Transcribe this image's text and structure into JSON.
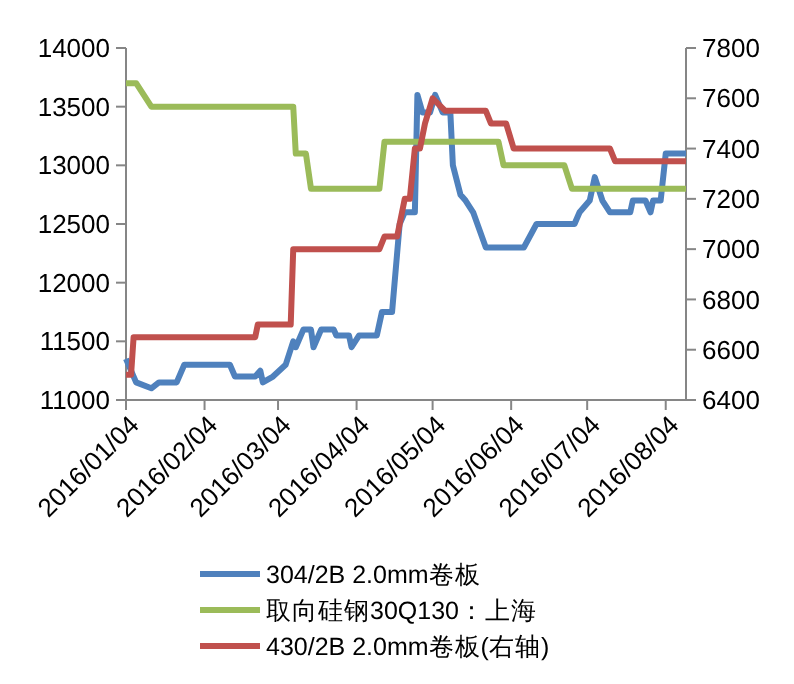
{
  "chart_data": {
    "type": "line",
    "xlim": [
      "2016-01-04",
      "2016-08-12"
    ],
    "xticks": [
      {
        "value": "2016-01-04",
        "label": "2016/01/04"
      },
      {
        "value": "2016-02-04",
        "label": "2016/02/04"
      },
      {
        "value": "2016-03-04",
        "label": "2016/03/04"
      },
      {
        "value": "2016-04-04",
        "label": "2016/04/04"
      },
      {
        "value": "2016-05-04",
        "label": "2016/05/04"
      },
      {
        "value": "2016-06-04",
        "label": "2016/06/04"
      },
      {
        "value": "2016-07-04",
        "label": "2016/07/04"
      },
      {
        "value": "2016-08-04",
        "label": "2016/08/04"
      }
    ],
    "ylim": [
      11000,
      14000
    ],
    "yticks": [
      11000,
      11500,
      12000,
      12500,
      13000,
      13500,
      14000
    ],
    "y2lim": [
      6400,
      7800
    ],
    "y2ticks": [
      6400,
      6600,
      6800,
      7000,
      7200,
      7400,
      7600,
      7800
    ],
    "grid": false,
    "legend": "bottom",
    "marker": "none",
    "line_style": "solid",
    "series": [
      {
        "name": "304/2B 2.0mm卷板",
        "color": "#4f81bd",
        "x": [
          "2016-01-04",
          "2016-01-08",
          "2016-01-14",
          "2016-01-17",
          "2016-01-24",
          "2016-01-27",
          "2016-02-14",
          "2016-02-16",
          "2016-02-24",
          "2016-02-26",
          "2016-02-27",
          "2016-03-02",
          "2016-03-07",
          "2016-03-10",
          "2016-03-11",
          "2016-03-14",
          "2016-03-17",
          "2016-03-18",
          "2016-03-21",
          "2016-03-26",
          "2016-03-27",
          "2016-04-01",
          "2016-04-02",
          "2016-04-05",
          "2016-04-12",
          "2016-04-14",
          "2016-04-18",
          "2016-04-21",
          "2016-04-23",
          "2016-04-27",
          "2016-04-28",
          "2016-04-30",
          "2016-05-03",
          "2016-05-05",
          "2016-05-08",
          "2016-05-11",
          "2016-05-12",
          "2016-05-15",
          "2016-05-17",
          "2016-05-20",
          "2016-05-25",
          "2016-06-09",
          "2016-06-14",
          "2016-06-29",
          "2016-07-01",
          "2016-07-05",
          "2016-07-07",
          "2016-07-10",
          "2016-07-13",
          "2016-07-21",
          "2016-07-22",
          "2016-07-27",
          "2016-07-29",
          "2016-07-30",
          "2016-08-02",
          "2016-08-03",
          "2016-08-04",
          "2016-08-12"
        ],
        "values": [
          11350,
          11150,
          11100,
          11150,
          11150,
          11300,
          11300,
          11200,
          11200,
          11250,
          11150,
          11200,
          11300,
          11500,
          11450,
          11600,
          11600,
          11450,
          11600,
          11600,
          11550,
          11550,
          11450,
          11550,
          11550,
          11750,
          11750,
          12500,
          12600,
          12600,
          13600,
          13450,
          13450,
          13600,
          13450,
          13450,
          13000,
          12750,
          12700,
          12600,
          12300,
          12300,
          12500,
          12500,
          12600,
          12700,
          12900,
          12700,
          12600,
          12600,
          12700,
          12700,
          12600,
          12700,
          12700,
          12900,
          13100,
          13100
        ]
      },
      {
        "name": "取向硅钢30Q130：上海",
        "color": "#9bbb59",
        "x": [
          "2016-01-04",
          "2016-01-08",
          "2016-01-11",
          "2016-01-14",
          "2016-03-10",
          "2016-03-11",
          "2016-03-15",
          "2016-03-17",
          "2016-04-13",
          "2016-04-15",
          "2016-05-30",
          "2016-06-01",
          "2016-06-25",
          "2016-06-28",
          "2016-08-12"
        ],
        "values": [
          13700,
          13700,
          13600,
          13500,
          13500,
          13100,
          13100,
          12800,
          12800,
          13200,
          13200,
          13000,
          13000,
          12800,
          12800
        ]
      },
      {
        "name": "430/2B 2.0mm卷板(右轴)",
        "color": "#c0504d",
        "axis": "y2",
        "x": [
          "2016-01-04",
          "2016-01-06",
          "2016-01-07",
          "2016-02-24",
          "2016-02-25",
          "2016-03-09",
          "2016-03-10",
          "2016-04-13",
          "2016-04-15",
          "2016-04-20",
          "2016-04-23",
          "2016-04-25",
          "2016-04-27",
          "2016-04-29",
          "2016-05-01",
          "2016-05-04",
          "2016-05-09",
          "2016-05-25",
          "2016-05-27",
          "2016-06-02",
          "2016-06-05",
          "2016-07-13",
          "2016-07-15",
          "2016-08-12"
        ],
        "values": [
          6500,
          6500,
          6650,
          6650,
          6700,
          6700,
          7000,
          7000,
          7050,
          7050,
          7200,
          7200,
          7400,
          7400,
          7500,
          7600,
          7550,
          7550,
          7500,
          7500,
          7400,
          7400,
          7350,
          7350
        ]
      }
    ]
  }
}
